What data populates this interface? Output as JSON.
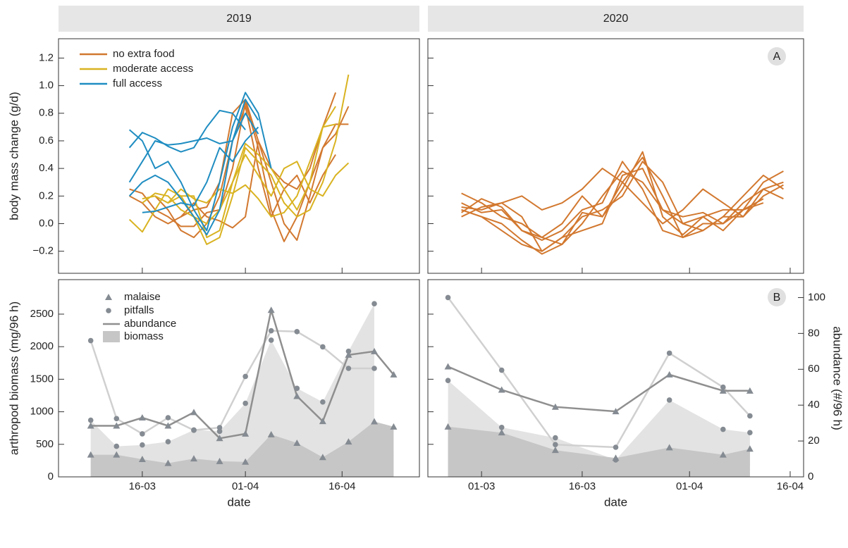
{
  "chart_data": [
    {
      "type": "line",
      "title": "2019",
      "ylabel": "body mass change (g/d)",
      "xlim": [
        "03-03",
        "28-04"
      ],
      "xticks": [
        "16-03",
        "01-04",
        "16-04"
      ],
      "ylim": [
        -0.36,
        1.34
      ],
      "yticks": [
        {
          "value": -0.2,
          "label": "−0.2"
        },
        {
          "value": 0,
          "label": "0.0"
        },
        0.2,
        0.4,
        0.6,
        0.8,
        {
          "value": 1,
          "label": "1.0"
        },
        1.2
      ],
      "x": [
        "14-03",
        "16-03",
        "18-03",
        "20-03",
        "22-03",
        "24-03",
        "26-03",
        "28-03",
        "30-03",
        "01-04",
        "03-04",
        "05-04",
        "07-04",
        "09-04",
        "11-04",
        "13-04",
        "15-04",
        "17-04",
        "19-04"
      ],
      "series": [
        {
          "name": "no extra food",
          "color": "#d2782f",
          "lines": [
            {
              "values": [
                0.25,
                0.22,
                0.1,
                0.05,
                -0.02,
                -0.02,
                0.08,
                0.1,
                0.4,
                0.88,
                0.55,
                0.1,
                -0.13,
                0.05,
                0.3,
                0.55,
                0.72,
                0.72,
                null
              ]
            },
            {
              "values": [
                0.2,
                0.15,
                0.05,
                0,
                0.05,
                0.15,
                0.05,
                0.02,
                -0.03,
                0.05,
                0.6,
                0.4,
                0.3,
                0.25,
                0.4,
                0.7,
                0.95,
                null,
                null
              ]
            },
            {
              "values": [
                null,
                null,
                null,
                null,
                0.05,
                0.1,
                0.12,
                0.3,
                0.8,
                0.9,
                0.6,
                0.3,
                0,
                -0.12,
                0.2,
                0.55,
                0.65,
                0.85,
                null
              ]
            },
            {
              "values": [
                null,
                null,
                0.2,
                0.1,
                -0.05,
                -0.1,
                0,
                0.2,
                0.6,
                0.85,
                0.4,
                0.05,
                0.25,
                0.35,
                0.15,
                0.35,
                0.5,
                null,
                null
              ]
            }
          ]
        },
        {
          "name": "moderate access",
          "color": "#d9b321",
          "lines": [
            {
              "values": [
                0.03,
                -0.06,
                0.1,
                0.25,
                0.2,
                0.05,
                -0.15,
                -0.1,
                0.2,
                0.55,
                0.45,
                0.35,
                0.15,
                0.05,
                0.1,
                0.3,
                0.6,
                1.08,
                null
              ]
            },
            {
              "values": [
                null,
                0.15,
                0.22,
                0.2,
                0.1,
                0.05,
                0,
                0.1,
                0.3,
                0.5,
                0.35,
                0.2,
                0.4,
                0.45,
                0.25,
                0.2,
                0.35,
                0.44,
                null
              ]
            },
            {
              "values": [
                null,
                0.18,
                0.2,
                0.15,
                0.25,
                0.18,
                0.15,
                0.25,
                0.22,
                0.28,
                0.18,
                0.05,
                0.08,
                0.2,
                0.45,
                0.7,
                0.72,
                null,
                null
              ]
            },
            {
              "values": [
                null,
                null,
                null,
                0.15,
                0.2,
                0.2,
                -0.1,
                -0.05,
                0.3,
                0.58,
                0.5,
                0.4,
                0.25,
                0.1,
                0.3,
                0.7,
                0.85,
                null,
                null
              ]
            }
          ]
        },
        {
          "name": "full access",
          "color": "#1f8dc1",
          "lines": [
            {
              "values": [
                0.68,
                0.6,
                0.4,
                0.45,
                0.3,
                0.1,
                -0.05,
                0.3,
                0.7,
                0.95,
                0.8,
                0.4,
                null,
                null,
                null,
                null,
                null,
                null,
                null
              ]
            },
            {
              "values": [
                0.55,
                0.66,
                0.62,
                0.56,
                0.52,
                0.55,
                0.7,
                0.82,
                0.8,
                0.68,
                null,
                null,
                null,
                null,
                null,
                null,
                null,
                null,
                null
              ]
            },
            {
              "values": [
                0.3,
                0.45,
                0.6,
                0.57,
                0.58,
                0.6,
                0.62,
                0.58,
                0.6,
                0.8,
                0.65,
                null,
                null,
                null,
                null,
                null,
                null,
                null,
                null
              ]
            },
            {
              "values": [
                0.2,
                0.3,
                0.35,
                0.3,
                0.18,
                0.05,
                -0.08,
                0.1,
                0.6,
                0.9,
                0.75,
                null,
                null,
                null,
                null,
                null,
                null,
                null,
                null
              ]
            },
            {
              "values": [
                null,
                0.08,
                0.09,
                0.12,
                0.15,
                0.13,
                0.3,
                0.55,
                0.45,
                0.6,
                0.7,
                null,
                null,
                null,
                null,
                null,
                null,
                null,
                null
              ]
            }
          ]
        }
      ]
    },
    {
      "type": "line",
      "title": "2020",
      "label": "A",
      "xlim": [
        "22-02",
        "18-04"
      ],
      "xticks": [
        "01-03",
        "16-03",
        "01-04",
        "16-04"
      ],
      "ylim": [
        -0.36,
        1.34
      ],
      "yticks": [
        -0.2,
        0,
        0.2,
        0.4,
        0.6,
        0.8,
        1,
        1.2
      ],
      "x": [
        "27-02",
        "01-03",
        "04-03",
        "07-03",
        "10-03",
        "13-03",
        "16-03",
        "19-03",
        "22-03",
        "25-03",
        "28-03",
        "31-03",
        "03-04",
        "06-04",
        "09-04",
        "12-04",
        "15-04"
      ],
      "series": [
        {
          "color": "#d2782f",
          "lines": [
            {
              "values": [
                0.22,
                0.15,
                0.05,
                0,
                -0.1,
                -0.15,
                0,
                0.2,
                0.38,
                0.3,
                0.1,
                0.05,
                0.08,
                0,
                0.1,
                0.3,
                0.38
              ]
            },
            {
              "values": [
                0.12,
                0.1,
                0.15,
                0.05,
                -0.2,
                -0.1,
                0.05,
                0.1,
                0.2,
                0.45,
                0.3,
                0,
                -0.05,
                0.05,
                0.2,
                0.35,
                0.25
              ]
            },
            {
              "values": [
                0.1,
                0.05,
                0,
                -0.12,
                -0.22,
                -0.15,
                0.08,
                0.05,
                0.3,
                0.48,
                0.2,
                -0.1,
                -0.05,
                0.05,
                0.05,
                0.25,
                0.18
              ]
            },
            {
              "values": [
                0.08,
                0.18,
                0.12,
                -0.05,
                -0.12,
                -0.05,
                0.1,
                0.15,
                0.45,
                0.25,
                -0.05,
                -0.1,
                0,
                0,
                0.15,
                0.25,
                0.3
              ]
            },
            {
              "values": [
                0.05,
                0.12,
                0.15,
                0.2,
                0.1,
                0.15,
                0.25,
                0.4,
                0.3,
                0.15,
                0,
                0.1,
                0.25,
                0.15,
                0.05,
                0.2,
                0.28
              ]
            },
            {
              "values": [
                0.15,
                0.08,
                0.1,
                -0.05,
                -0.1,
                0,
                0.2,
                0.05,
                0.25,
                0.52,
                0.05,
                -0.08,
                0.05,
                0.1,
                0.1,
                0.18,
                null
              ]
            },
            {
              "values": [
                0.1,
                0.05,
                -0.05,
                -0.15,
                -0.2,
                -0.1,
                -0.05,
                0,
                0.35,
                0.4,
                0.1,
                0,
                0.05,
                -0.05,
                0.1,
                0.15,
                null
              ]
            }
          ]
        }
      ]
    },
    {
      "type": "traps",
      "ylabel": "arthropod biomass (mg/96 h)",
      "xlabel": "date",
      "abundance_label": "abundance",
      "biomass_label": "biomass",
      "xlim": [
        "03-03",
        "28-04"
      ],
      "xticks": [
        "16-03",
        "01-04",
        "16-04"
      ],
      "ylim": [
        0,
        3030
      ],
      "yticks": [
        0,
        500,
        1000,
        1500,
        2000,
        2500
      ],
      "y2lim": [
        0,
        110
      ],
      "x": [
        "08-03",
        "12-03",
        "16-03",
        "20-03",
        "24-03",
        "28-03",
        "01-04",
        "05-04",
        "09-04",
        "13-04",
        "17-04",
        "21-04",
        "24-04"
      ],
      "series": [
        {
          "name": "malaise",
          "marker": "triangle",
          "marker_color": "#858b92",
          "line_color": "#8f8f8f",
          "area_color": "#c6c6c6",
          "abundance_axis": "y2",
          "biomass": [
            340,
            340,
            270,
            210,
            280,
            240,
            230,
            650,
            520,
            300,
            540,
            850,
            770
          ],
          "abundance": [
            28.5,
            28.5,
            33,
            28.5,
            36,
            21.5,
            24,
            93,
            45,
            31,
            68,
            70,
            57
          ]
        },
        {
          "name": "pitfalls",
          "marker": "circle",
          "marker_color": "#858b92",
          "line_color": "#d0d0d0",
          "area_color": "#e3e3e3",
          "abundance_axis": "y2",
          "biomass": [
            870,
            470,
            490,
            540,
            720,
            700,
            1130,
            2100,
            1360,
            1150,
            1930,
            2660,
            null
          ],
          "abundance": [
            76,
            32.5,
            24,
            33,
            26,
            27.5,
            56,
            81.5,
            81,
            72.5,
            60.5,
            60.5,
            null
          ]
        }
      ]
    },
    {
      "type": "traps",
      "label": "B",
      "xlabel": "date",
      "y2label": "abundance (#/96 h)",
      "xlim": [
        "22-02",
        "18-04"
      ],
      "xticks": [
        "01-03",
        "16-03",
        "01-04",
        "16-04"
      ],
      "ylim": [
        0,
        3030
      ],
      "yticks": [
        0,
        500,
        1000,
        1500,
        2000,
        2500
      ],
      "y2lim": [
        0,
        110
      ],
      "y2ticks": [
        0,
        20,
        40,
        60,
        80,
        100
      ],
      "x": [
        "25-02",
        "04-03",
        "12-03",
        "21-03",
        "29-03",
        "06-04",
        "10-04"
      ],
      "series": [
        {
          "marker": "triangle",
          "marker_color": "#858b92",
          "line_color": "#8f8f8f",
          "area_color": "#c6c6c6",
          "abundance_axis": "y2",
          "biomass": [
            770,
            680,
            410,
            290,
            450,
            340,
            430
          ],
          "abundance": [
            61.5,
            48.5,
            39,
            36.5,
            57,
            48,
            48
          ]
        },
        {
          "marker": "circle",
          "marker_color": "#858b92",
          "line_color": "#d0d0d0",
          "area_color": "#e3e3e3",
          "abundance_axis": "y2",
          "biomass": [
            1480,
            760,
            600,
            260,
            1180,
            730,
            680
          ],
          "abundance": [
            100,
            59.5,
            18,
            16.5,
            69,
            50,
            34
          ]
        }
      ]
    }
  ]
}
